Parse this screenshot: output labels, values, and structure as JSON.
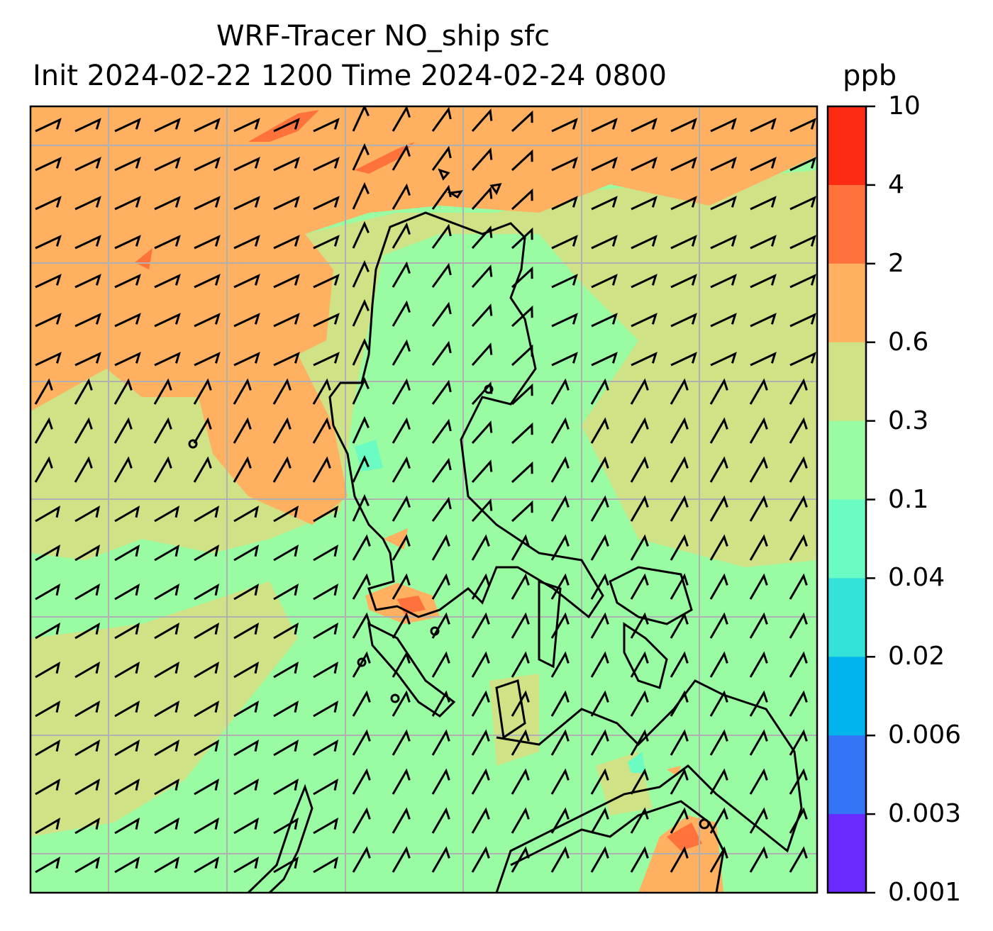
{
  "title": {
    "line1": "WRF-Tracer NO_ship sfc",
    "line2": "Init 2024-02-22 1200 Time 2024-02-24 0800",
    "units": "ppb"
  },
  "colorbar": {
    "levels": [
      "10",
      "4",
      "2",
      "0.6",
      "0.3",
      "0.1",
      "0.04",
      "0.02",
      "0.006",
      "0.003",
      "0.001"
    ],
    "colors": [
      "#ff2a14",
      "#ff723c",
      "#ffb060",
      "#cfe286",
      "#9afca2",
      "#6afcc2",
      "#33e2d8",
      "#00b4ec",
      "#3474f6",
      "#6a2afe"
    ]
  },
  "map": {
    "colors": {
      "orange": "#ffb060",
      "olive": "#cfe286",
      "green": "#9afca2",
      "red": "#ff723c",
      "cyan": "#6afcc2",
      "grid": "#b0b0b0"
    }
  }
}
